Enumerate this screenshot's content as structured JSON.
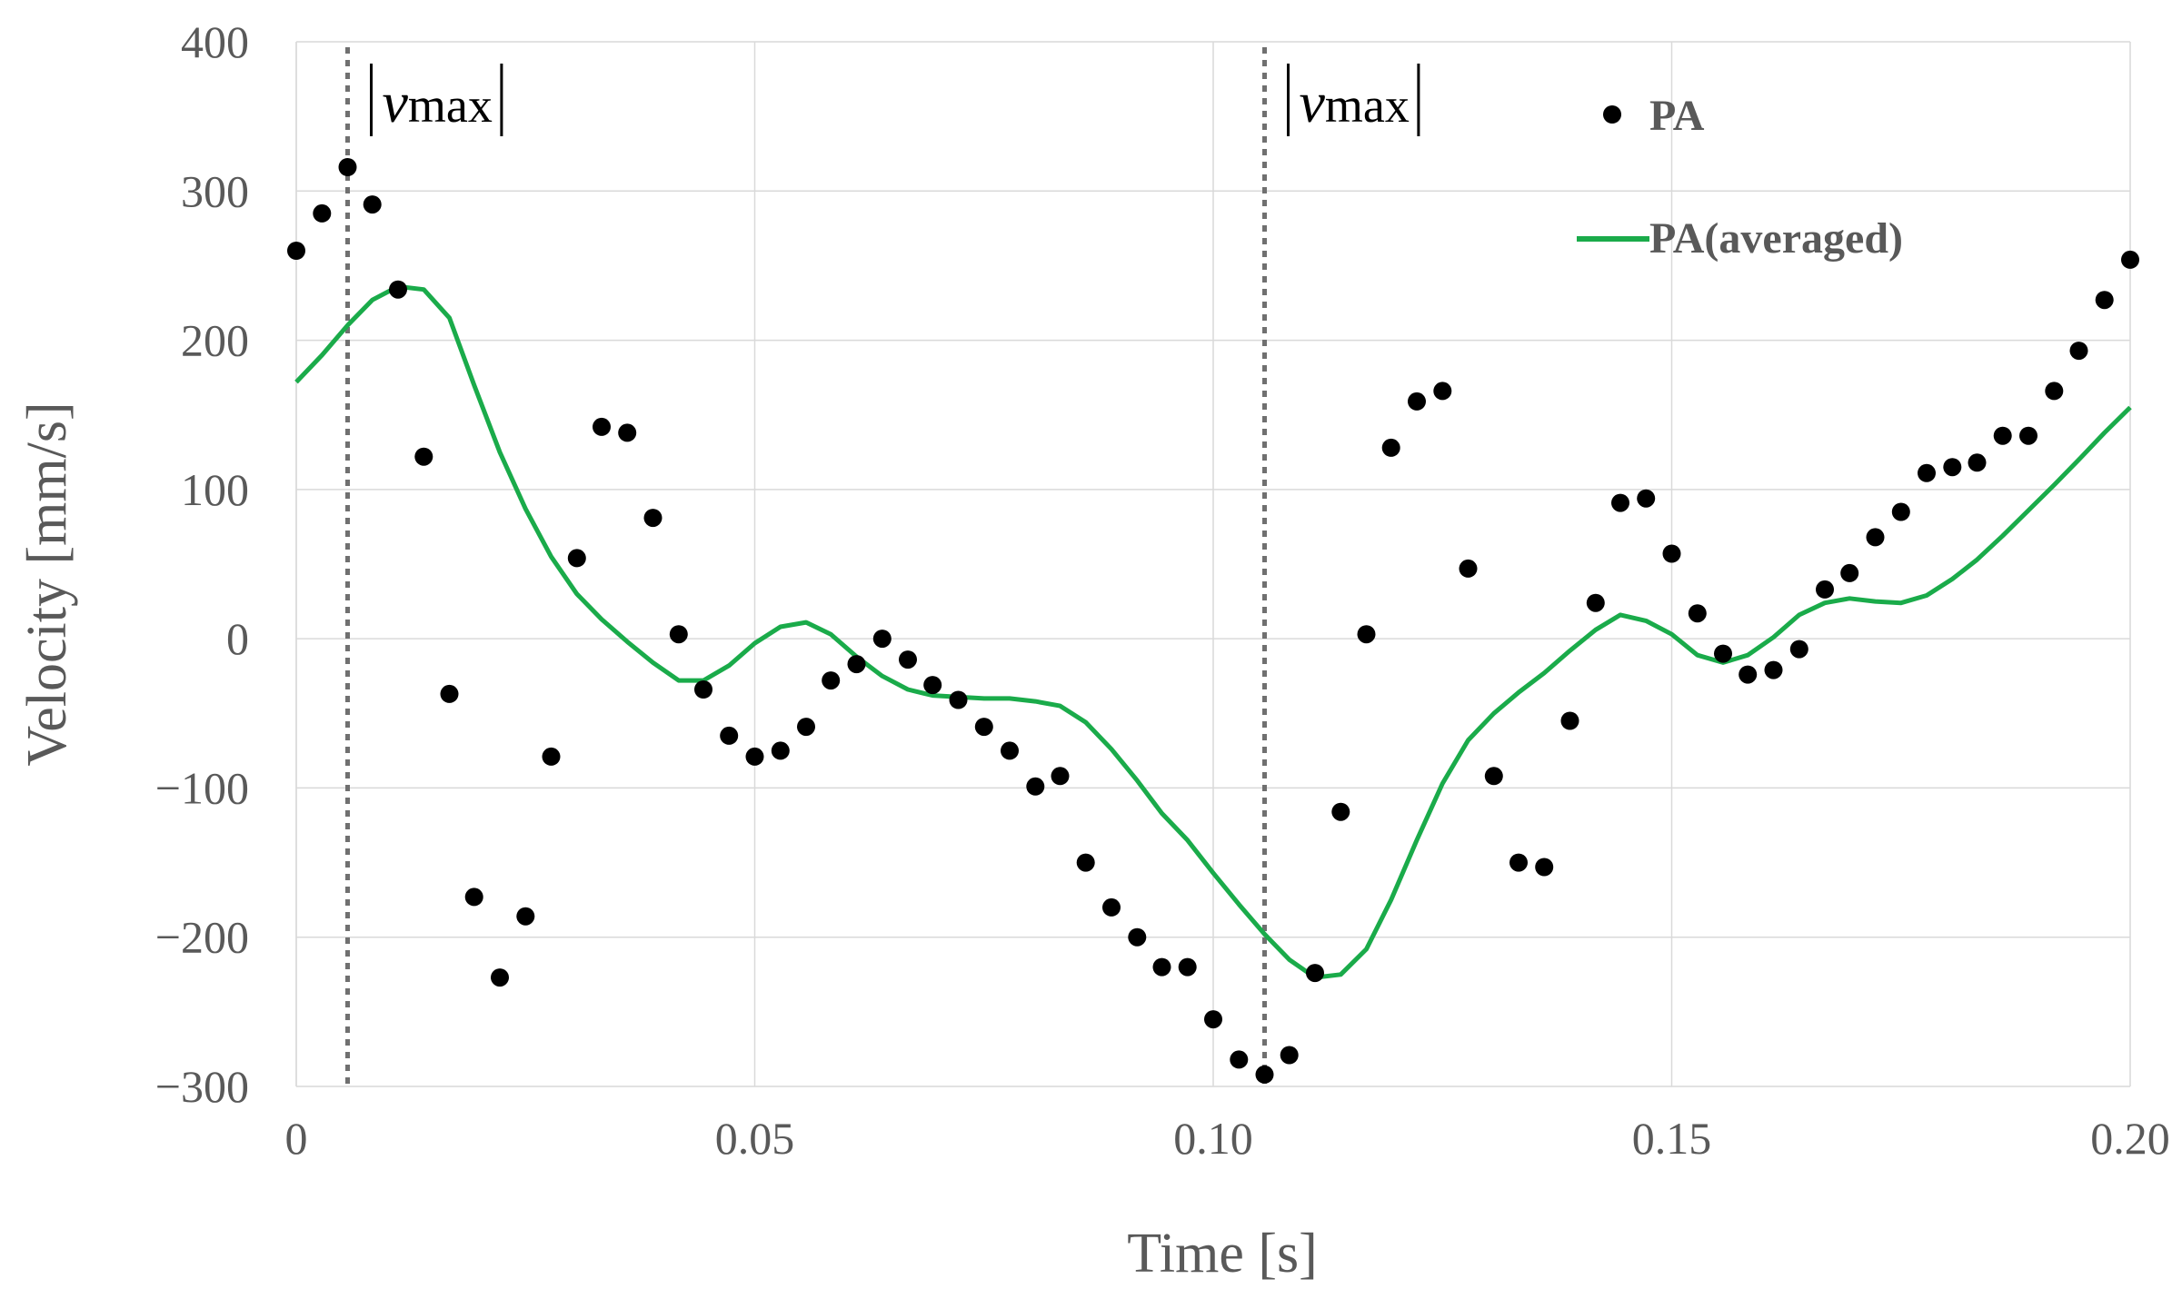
{
  "chart_data": {
    "type": "scatter",
    "title": "",
    "xlabel": "Time [s]",
    "ylabel": "Velocity [mm/s]",
    "xlim": [
      0,
      0.2
    ],
    "ylim": [
      -300,
      400
    ],
    "x_ticks": [
      0,
      0.05,
      0.1,
      0.15,
      0.2
    ],
    "x_tick_labels": [
      "0",
      "0.05",
      "0.10",
      "0.15",
      "0.20"
    ],
    "y_ticks": [
      400,
      300,
      200,
      100,
      0,
      -100,
      -200,
      -300
    ],
    "y_tick_labels": [
      "400",
      "300",
      "200",
      "100",
      "0",
      "−100",
      "−200",
      "−300"
    ],
    "grid": true,
    "legend_position": "top-right",
    "series": [
      {
        "name": "PA",
        "kind": "scatter",
        "color": "#000000",
        "x": [
          0.0,
          0.0028,
          0.0056,
          0.0083,
          0.0111,
          0.0139,
          0.0167,
          0.0194,
          0.0222,
          0.025,
          0.0278,
          0.0306,
          0.0333,
          0.0361,
          0.0389,
          0.0417,
          0.0444,
          0.0472,
          0.05,
          0.0528,
          0.0556,
          0.0583,
          0.0611,
          0.0639,
          0.0667,
          0.0694,
          0.0722,
          0.075,
          0.0778,
          0.0806,
          0.0833,
          0.0861,
          0.0889,
          0.0917,
          0.0944,
          0.0972,
          0.1,
          0.1028,
          0.1056,
          0.1083,
          0.1111,
          0.1139,
          0.1167,
          0.1194,
          0.1222,
          0.125,
          0.1278,
          0.1306,
          0.1333,
          0.1361,
          0.1389,
          0.1417,
          0.1444,
          0.1472,
          0.15,
          0.1528,
          0.1556,
          0.1583,
          0.1611,
          0.1639,
          0.1667,
          0.1694,
          0.1722,
          0.175,
          0.1778,
          0.1806,
          0.1833,
          0.1861,
          0.1889,
          0.1917,
          0.1944,
          0.1972,
          0.2
        ],
        "values": [
          260,
          285,
          316,
          291,
          234,
          122,
          -37,
          -173,
          -227,
          -186,
          -79,
          54,
          142,
          138,
          81,
          3,
          -34,
          -65,
          -79,
          -75,
          -59,
          -28,
          -17,
          0,
          -14,
          -31,
          -41,
          -59,
          -75,
          -99,
          -92,
          -150,
          -180,
          -200,
          -220,
          -220,
          -255,
          -282,
          -292,
          -279,
          -224,
          -116,
          3,
          128,
          159,
          166,
          47,
          -92,
          -150,
          -153,
          -55,
          24,
          91,
          94,
          57,
          17,
          -10,
          -24,
          -21,
          -7,
          33,
          44,
          68,
          85,
          111,
          115,
          118,
          136,
          136,
          166,
          193,
          227,
          254
        ]
      },
      {
        "name": "PA(averaged)",
        "kind": "line",
        "color": "#1aab4a",
        "x": [
          0.0,
          0.0028,
          0.0056,
          0.0083,
          0.0111,
          0.0139,
          0.0167,
          0.0194,
          0.0222,
          0.025,
          0.0278,
          0.0306,
          0.0333,
          0.0361,
          0.0389,
          0.0417,
          0.0444,
          0.0472,
          0.05,
          0.0528,
          0.0556,
          0.0583,
          0.0611,
          0.0639,
          0.0667,
          0.0694,
          0.0722,
          0.075,
          0.0778,
          0.0806,
          0.0833,
          0.0861,
          0.0889,
          0.0917,
          0.0944,
          0.0972,
          0.1,
          0.1028,
          0.1056,
          0.1083,
          0.1111,
          0.1139,
          0.1167,
          0.1194,
          0.1222,
          0.125,
          0.1278,
          0.1306,
          0.1333,
          0.1361,
          0.1389,
          0.1417,
          0.1444,
          0.1472,
          0.15,
          0.1528,
          0.1556,
          0.1583,
          0.1611,
          0.1639,
          0.1667,
          0.1694,
          0.1722,
          0.175,
          0.1778,
          0.1806,
          0.1833,
          0.1861,
          0.1889,
          0.1917,
          0.1944,
          0.1972,
          0.2
        ],
        "values": [
          172,
          190,
          210,
          227,
          236,
          234,
          215,
          170,
          125,
          87,
          55,
          30,
          13,
          -2,
          -16,
          -28,
          -28,
          -18,
          -3,
          8,
          11,
          3,
          -12,
          -25,
          -34,
          -38,
          -39,
          -40,
          -40,
          -42,
          -45,
          -56,
          -74,
          -95,
          -117,
          -135,
          -157,
          -178,
          -198,
          -215,
          -227,
          -225,
          -208,
          -175,
          -135,
          -97,
          -68,
          -50,
          -36,
          -23,
          -8,
          6,
          16,
          12,
          3,
          -11,
          -16,
          -11,
          1,
          16,
          24,
          27,
          25,
          24,
          29,
          40,
          53,
          69,
          86,
          103,
          120,
          138,
          155
        ]
      }
    ],
    "markers": [
      {
        "x": 0.0056,
        "label_bars": "|",
        "label_symbol": "v",
        "label_subscript": "max"
      },
      {
        "x": 0.1056,
        "label_bars": "|",
        "label_symbol": "v",
        "label_subscript": "max"
      }
    ]
  }
}
